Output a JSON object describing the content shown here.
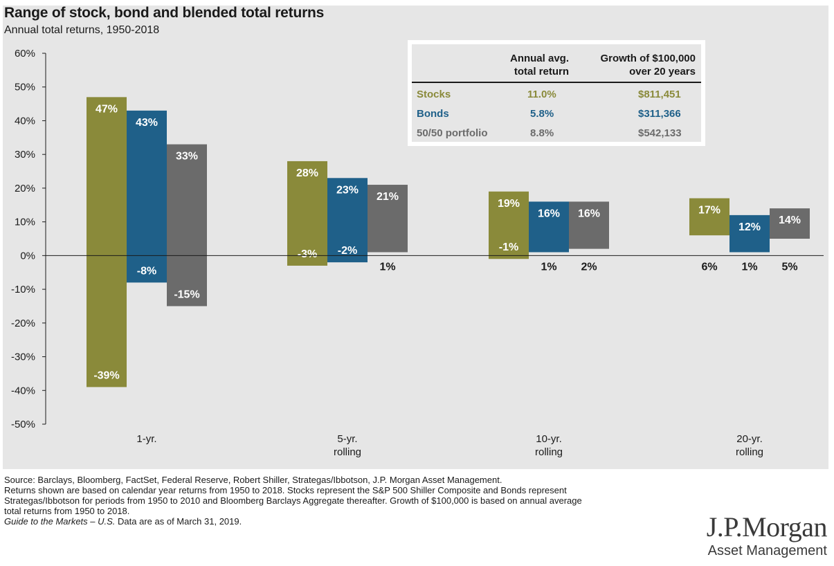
{
  "header": {
    "title": "Range of stock, bond and blended total returns",
    "subtitle": "Annual total returns, 1950-2018"
  },
  "colors": {
    "stocks": "#8a8a3a",
    "bonds": "#1f6089",
    "blend": "#6b6b6b",
    "panel": "#e6e6e6"
  },
  "chart_data": {
    "type": "bar",
    "subtype": "floating-range",
    "categories": [
      "1-yr.",
      "5-yr.\nrolling",
      "10-yr.\nrolling",
      "20-yr.\nrolling"
    ],
    "series": [
      {
        "name": "Stocks",
        "high": [
          47,
          28,
          19,
          17
        ],
        "low": [
          -39,
          -3,
          -1,
          6
        ],
        "high_labels": [
          "47%",
          "28%",
          "19%",
          "17%"
        ],
        "low_labels": [
          "-39%",
          "-3%",
          "-1%",
          "6%"
        ]
      },
      {
        "name": "Bonds",
        "high": [
          43,
          23,
          16,
          12
        ],
        "low": [
          -8,
          -2,
          1,
          1
        ],
        "high_labels": [
          "43%",
          "23%",
          "16%",
          "12%"
        ],
        "low_labels": [
          "-8%",
          "-2%",
          "1%",
          "1%"
        ]
      },
      {
        "name": "50/50 portfolio",
        "high": [
          33,
          21,
          16,
          14
        ],
        "low": [
          -15,
          1,
          2,
          5
        ],
        "high_labels": [
          "33%",
          "21%",
          "16%",
          "14%"
        ],
        "low_labels": [
          "-15%",
          "1%",
          "2%",
          "5%"
        ]
      }
    ],
    "ylim": [
      -50,
      60
    ],
    "yticks": [
      60,
      50,
      40,
      30,
      20,
      10,
      0,
      -10,
      -20,
      -30,
      -40,
      -50
    ],
    "ytick_labels": [
      "60%",
      "50%",
      "40%",
      "30%",
      "20%",
      "10%",
      "0%",
      "-10%",
      "-20%",
      "-30%",
      "-40%",
      "-50%"
    ],
    "grid": false
  },
  "summary_table": {
    "headers": [
      "Annual avg.\ntotal return",
      "Growth of $100,000\nover 20 years"
    ],
    "rows": [
      {
        "label": "Stocks",
        "return": "11.0%",
        "growth": "$811,451",
        "color": "#8a8a3a"
      },
      {
        "label": "Bonds",
        "return": "5.8%",
        "growth": "$311,366",
        "color": "#1f6089"
      },
      {
        "label": "50/50 portfolio",
        "return": "8.8%",
        "growth": "$542,133",
        "color": "#6b6b6b"
      }
    ]
  },
  "footer": {
    "lines": [
      "Source: Barclays, Bloomberg, FactSet, Federal Reserve, Robert Shiller, Strategas/Ibbotson, J.P. Morgan Asset Management.",
      "Returns shown are based on calendar year returns from 1950 to 2018. Stocks represent the S&P 500 Shiller Composite and Bonds represent",
      "Strategas/Ibbotson for periods from 1950 to 2010 and Bloomberg Barclays Aggregate thereafter. Growth of $100,000 is based on annual average",
      "total returns from 1950 to 2018."
    ],
    "guide_italic": "Guide to the Markets – U.S.",
    "guide_rest": " Data are as of March 31, 2019."
  },
  "logo": {
    "name": "J.P.Morgan",
    "sub": "Asset Management"
  }
}
